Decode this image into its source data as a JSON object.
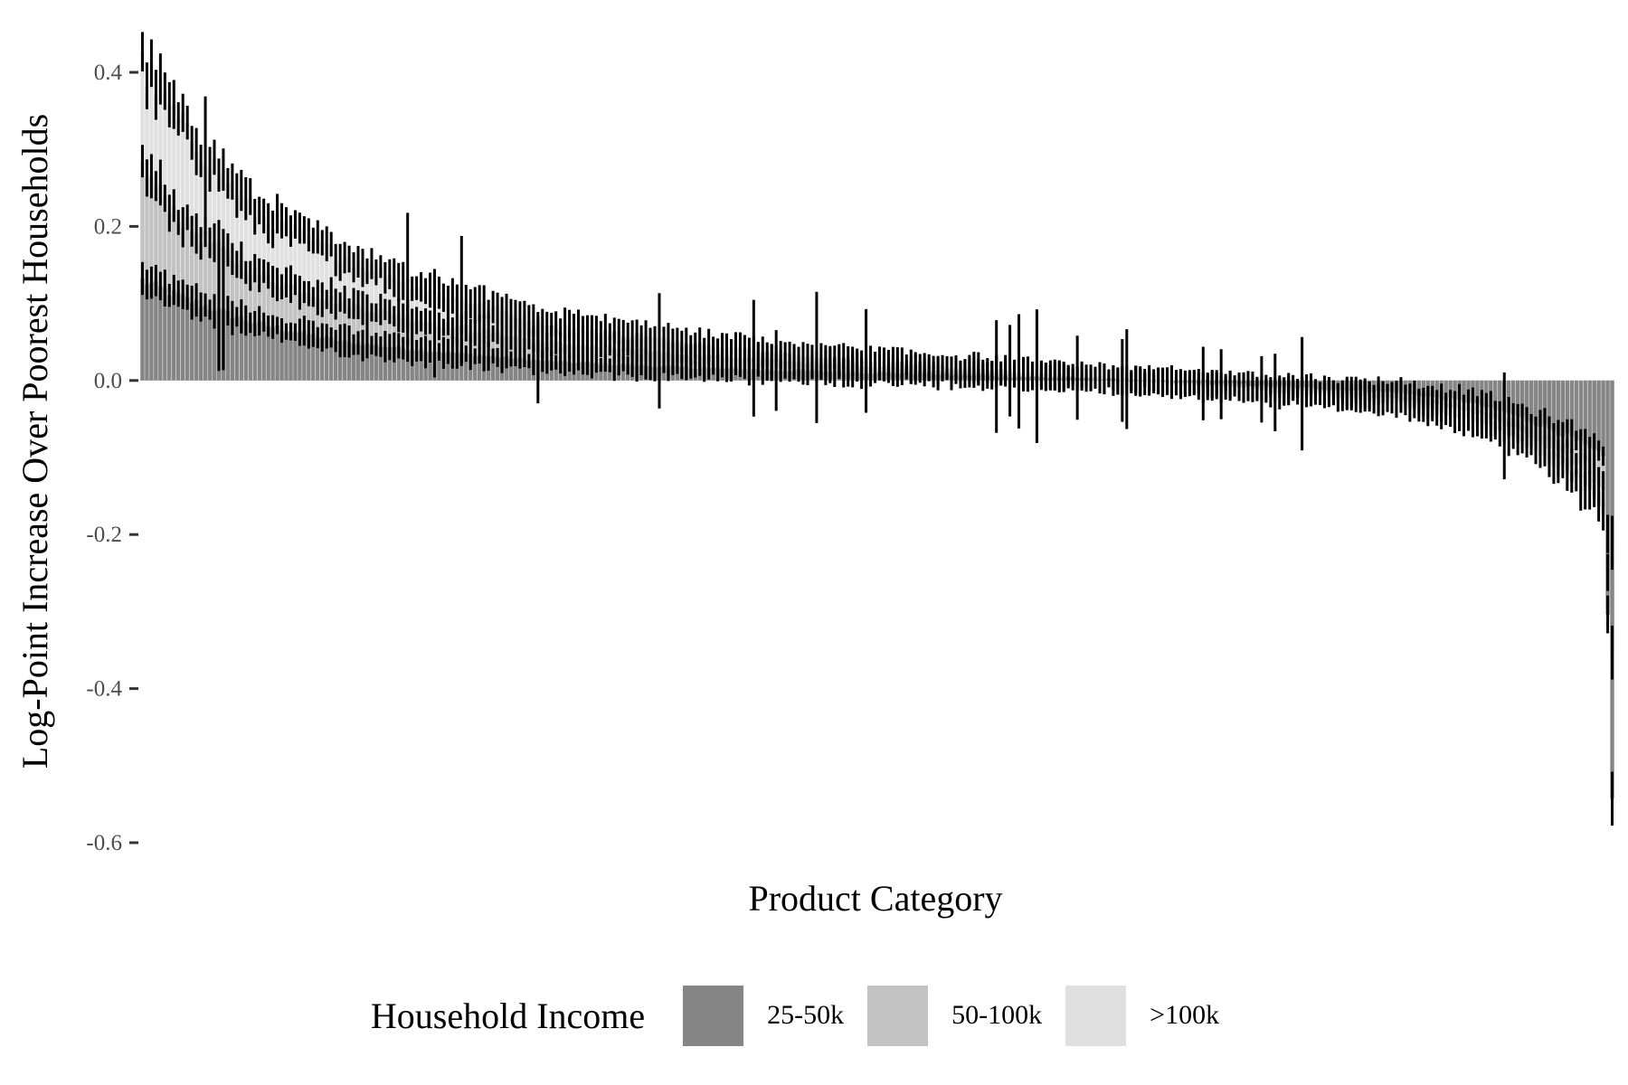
{
  "chart_data": {
    "type": "bar",
    "xlabel": "Product Category",
    "ylabel": "Log-Point Increase Over Poorest Households",
    "ylim": [
      -0.6,
      0.4
    ],
    "yticks": [
      "0.4",
      "0.2",
      "0.0",
      "-0.2",
      "-0.4",
      "-0.6"
    ],
    "grid": false,
    "legend": {
      "title": "Household Income",
      "position": "bottom",
      "entries": [
        {
          "label": "25-50k",
          "color": "#858585"
        },
        {
          "label": "50-100k",
          "color": "#c2c2c2"
        },
        {
          "label": ">100k",
          "color": "#e0e0e0"
        }
      ]
    },
    "n_categories": 328,
    "categories_sorted_by": ">100k estimate, descending",
    "series": [
      {
        "name": "25-50k",
        "color": "#858585",
        "values_at_anchor": {
          "index": [
            0,
            10,
            25,
            45,
            65,
            90,
            120,
            150,
            180,
            200,
            220,
            240,
            260,
            280,
            295,
            305,
            312,
            318,
            322,
            325,
            327
          ],
          "value": [
            0.13,
            0.105,
            0.075,
            0.05,
            0.038,
            0.025,
            0.017,
            0.012,
            0.008,
            0.004,
            0.0,
            -0.004,
            -0.01,
            -0.016,
            -0.028,
            -0.045,
            -0.06,
            -0.075,
            -0.09,
            -0.1,
            -0.52
          ]
        }
      },
      {
        "name": "50-100k",
        "color": "#c2c2c2",
        "values_at_anchor": {
          "index": [
            0,
            10,
            25,
            45,
            65,
            90,
            120,
            150,
            180,
            200,
            220,
            240,
            260,
            280,
            295,
            305,
            312,
            318,
            322,
            325,
            327
          ],
          "value": [
            0.275,
            0.2,
            0.14,
            0.1,
            0.075,
            0.05,
            0.035,
            0.022,
            0.013,
            0.006,
            0.0,
            -0.006,
            -0.015,
            -0.025,
            -0.04,
            -0.06,
            -0.085,
            -0.105,
            -0.125,
            -0.14,
            -0.35
          ]
        }
      },
      {
        "name": ">100k",
        "color": "#e0e0e0",
        "values_at_anchor": {
          "index": [
            0,
            10,
            25,
            45,
            65,
            90,
            120,
            150,
            180,
            200,
            220,
            240,
            260,
            280,
            295,
            305,
            312,
            318,
            322,
            325,
            327
          ],
          "value": [
            0.41,
            0.32,
            0.22,
            0.16,
            0.115,
            0.075,
            0.05,
            0.03,
            0.018,
            0.009,
            0.0,
            -0.009,
            -0.02,
            -0.03,
            -0.05,
            -0.075,
            -0.1,
            -0.125,
            -0.15,
            -0.17,
            -0.22
          ]
        }
      }
    ],
    "error_bars": "95% interval shown as vertical black segment on each series estimate"
  }
}
